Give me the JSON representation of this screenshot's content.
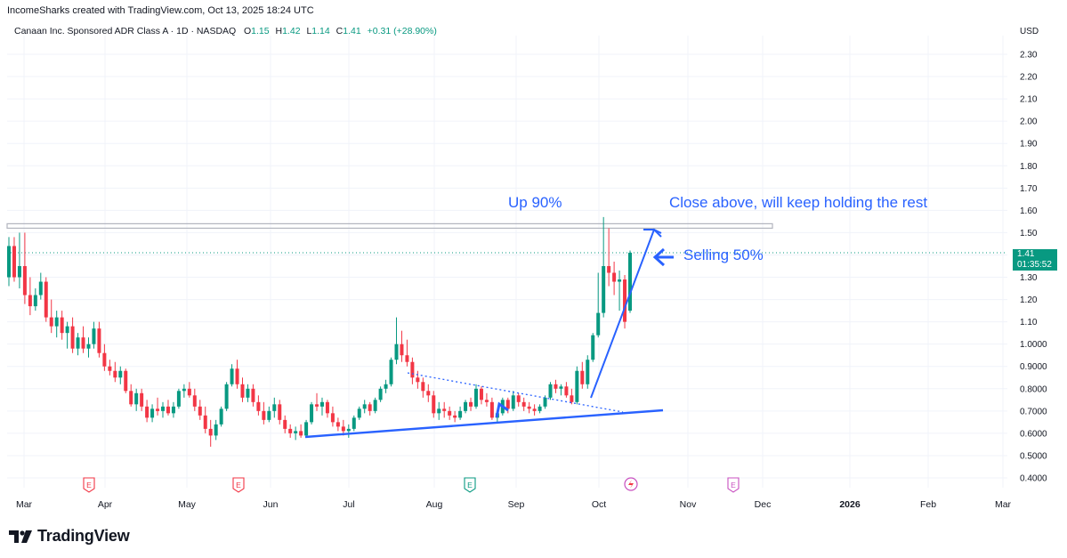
{
  "header": {
    "credit": "IncomeSharks created with TradingView.com, Oct 13, 2025 18:24 UTC"
  },
  "symbol": {
    "name": "Canaan Inc. Sponsored ADR Class A · 1D · NASDAQ",
    "o_label": "O",
    "o": "1.15",
    "h_label": "H",
    "h": "1.42",
    "l_label": "L",
    "l": "1.14",
    "c_label": "C",
    "c": "1.41",
    "change": "+0.31 (+28.90%)"
  },
  "price_tag": {
    "price": "1.41",
    "countdown": "01:35:52"
  },
  "brand": {
    "name": "TradingView"
  },
  "colors": {
    "up": "#089981",
    "down": "#f23645",
    "annotation": "#2962ff",
    "grid": "#f0f3fa"
  },
  "chart_data": {
    "type": "candlestick",
    "currency": "USD",
    "ylim": [
      0.4,
      2.3
    ],
    "y_ticks": [
      "2.30",
      "2.20",
      "2.10",
      "2.00",
      "1.90",
      "1.80",
      "1.70",
      "1.60",
      "1.50",
      "1.40",
      "1.30",
      "1.20",
      "1.10",
      "1.0000",
      "0.9000",
      "0.8000",
      "0.7000",
      "0.6000",
      "0.5000",
      "0.4000"
    ],
    "x_ticks": [
      "Mar",
      "Apr",
      "May",
      "Jun",
      "Jul",
      "Aug",
      "Sep",
      "Oct",
      "Nov",
      "Dec",
      "2026",
      "Feb",
      "Mar"
    ],
    "earnings_markers": [
      "E",
      "E",
      "E",
      "E"
    ],
    "candles": [
      [
        1.3,
        1.48,
        1.26,
        1.44
      ],
      [
        1.44,
        1.48,
        1.28,
        1.3
      ],
      [
        1.3,
        1.5,
        1.25,
        1.35
      ],
      [
        1.35,
        1.5,
        1.18,
        1.22
      ],
      [
        1.22,
        1.3,
        1.13,
        1.17
      ],
      [
        1.17,
        1.25,
        1.15,
        1.22
      ],
      [
        1.22,
        1.32,
        1.2,
        1.28
      ],
      [
        1.28,
        1.3,
        1.1,
        1.12
      ],
      [
        1.12,
        1.2,
        1.05,
        1.08
      ],
      [
        1.08,
        1.15,
        1.03,
        1.12
      ],
      [
        1.12,
        1.15,
        1.02,
        1.05
      ],
      [
        1.05,
        1.1,
        0.98,
        1.08
      ],
      [
        1.08,
        1.12,
        0.96,
        0.98
      ],
      [
        0.98,
        1.05,
        0.95,
        1.03
      ],
      [
        1.03,
        1.08,
        0.96,
        0.98
      ],
      [
        0.98,
        1.03,
        0.94,
        1.0
      ],
      [
        1.0,
        1.1,
        0.98,
        1.07
      ],
      [
        1.07,
        1.1,
        0.94,
        0.96
      ],
      [
        0.96,
        1.0,
        0.88,
        0.9
      ],
      [
        0.9,
        0.93,
        0.86,
        0.88
      ],
      [
        0.88,
        0.92,
        0.83,
        0.85
      ],
      [
        0.85,
        0.9,
        0.82,
        0.88
      ],
      [
        0.88,
        0.89,
        0.78,
        0.79
      ],
      [
        0.79,
        0.82,
        0.72,
        0.73
      ],
      [
        0.73,
        0.8,
        0.7,
        0.78
      ],
      [
        0.78,
        0.8,
        0.7,
        0.72
      ],
      [
        0.72,
        0.75,
        0.65,
        0.67
      ],
      [
        0.67,
        0.73,
        0.65,
        0.71
      ],
      [
        0.71,
        0.76,
        0.68,
        0.7
      ],
      [
        0.7,
        0.74,
        0.67,
        0.72
      ],
      [
        0.72,
        0.75,
        0.68,
        0.69
      ],
      [
        0.69,
        0.74,
        0.67,
        0.72
      ],
      [
        0.72,
        0.8,
        0.71,
        0.79
      ],
      [
        0.79,
        0.82,
        0.76,
        0.8
      ],
      [
        0.8,
        0.83,
        0.76,
        0.77
      ],
      [
        0.77,
        0.8,
        0.7,
        0.72
      ],
      [
        0.72,
        0.75,
        0.66,
        0.68
      ],
      [
        0.68,
        0.72,
        0.6,
        0.62
      ],
      [
        0.62,
        0.66,
        0.54,
        0.59
      ],
      [
        0.59,
        0.66,
        0.57,
        0.64
      ],
      [
        0.64,
        0.72,
        0.63,
        0.71
      ],
      [
        0.71,
        0.83,
        0.7,
        0.82
      ],
      [
        0.82,
        0.91,
        0.81,
        0.89
      ],
      [
        0.89,
        0.93,
        0.8,
        0.82
      ],
      [
        0.82,
        0.85,
        0.74,
        0.76
      ],
      [
        0.76,
        0.82,
        0.74,
        0.8
      ],
      [
        0.8,
        0.82,
        0.72,
        0.74
      ],
      [
        0.74,
        0.77,
        0.68,
        0.7
      ],
      [
        0.7,
        0.74,
        0.64,
        0.66
      ],
      [
        0.66,
        0.72,
        0.65,
        0.7
      ],
      [
        0.7,
        0.76,
        0.67,
        0.73
      ],
      [
        0.73,
        0.75,
        0.64,
        0.66
      ],
      [
        0.66,
        0.68,
        0.6,
        0.62
      ],
      [
        0.62,
        0.64,
        0.58,
        0.6
      ],
      [
        0.6,
        0.63,
        0.57,
        0.61
      ],
      [
        0.61,
        0.64,
        0.58,
        0.59
      ],
      [
        0.59,
        0.66,
        0.58,
        0.65
      ],
      [
        0.65,
        0.74,
        0.64,
        0.73
      ],
      [
        0.73,
        0.78,
        0.7,
        0.72
      ],
      [
        0.72,
        0.76,
        0.68,
        0.74
      ],
      [
        0.74,
        0.75,
        0.67,
        0.69
      ],
      [
        0.69,
        0.72,
        0.63,
        0.65
      ],
      [
        0.65,
        0.67,
        0.61,
        0.63
      ],
      [
        0.63,
        0.66,
        0.59,
        0.61
      ],
      [
        0.61,
        0.64,
        0.58,
        0.62
      ],
      [
        0.62,
        0.68,
        0.61,
        0.67
      ],
      [
        0.67,
        0.72,
        0.66,
        0.71
      ],
      [
        0.71,
        0.75,
        0.69,
        0.73
      ],
      [
        0.73,
        0.74,
        0.68,
        0.7
      ],
      [
        0.7,
        0.76,
        0.69,
        0.75
      ],
      [
        0.75,
        0.81,
        0.74,
        0.8
      ],
      [
        0.8,
        0.84,
        0.78,
        0.82
      ],
      [
        0.82,
        0.94,
        0.81,
        0.93
      ],
      [
        0.93,
        1.12,
        0.91,
        1.0
      ],
      [
        1.0,
        1.06,
        0.92,
        0.95
      ],
      [
        0.95,
        1.02,
        0.9,
        0.92
      ],
      [
        0.92,
        0.94,
        0.82,
        0.85
      ],
      [
        0.85,
        0.88,
        0.8,
        0.83
      ],
      [
        0.83,
        0.85,
        0.76,
        0.79
      ],
      [
        0.79,
        0.82,
        0.74,
        0.77
      ],
      [
        0.77,
        0.79,
        0.67,
        0.69
      ],
      [
        0.69,
        0.74,
        0.66,
        0.71
      ],
      [
        0.71,
        0.74,
        0.67,
        0.7
      ],
      [
        0.7,
        0.72,
        0.66,
        0.68
      ],
      [
        0.68,
        0.7,
        0.65,
        0.67
      ],
      [
        0.67,
        0.72,
        0.66,
        0.7
      ],
      [
        0.7,
        0.75,
        0.69,
        0.74
      ],
      [
        0.74,
        0.76,
        0.7,
        0.72
      ],
      [
        0.72,
        0.82,
        0.71,
        0.8
      ],
      [
        0.8,
        0.81,
        0.73,
        0.75
      ],
      [
        0.75,
        0.78,
        0.72,
        0.74
      ],
      [
        0.74,
        0.76,
        0.66,
        0.67
      ],
      [
        0.67,
        0.7,
        0.65,
        0.69
      ],
      [
        0.69,
        0.76,
        0.68,
        0.75
      ],
      [
        0.75,
        0.76,
        0.69,
        0.71
      ],
      [
        0.71,
        0.79,
        0.7,
        0.77
      ],
      [
        0.77,
        0.78,
        0.72,
        0.74
      ],
      [
        0.74,
        0.76,
        0.7,
        0.72
      ],
      [
        0.72,
        0.74,
        0.69,
        0.71
      ],
      [
        0.71,
        0.73,
        0.68,
        0.7
      ],
      [
        0.7,
        0.73,
        0.69,
        0.72
      ],
      [
        0.72,
        0.77,
        0.71,
        0.76
      ],
      [
        0.76,
        0.83,
        0.75,
        0.82
      ],
      [
        0.82,
        0.84,
        0.78,
        0.8
      ],
      [
        0.8,
        0.82,
        0.77,
        0.81
      ],
      [
        0.81,
        0.83,
        0.76,
        0.77
      ],
      [
        0.77,
        0.8,
        0.73,
        0.74
      ],
      [
        0.74,
        0.9,
        0.73,
        0.88
      ],
      [
        0.88,
        0.92,
        0.8,
        0.82
      ],
      [
        0.82,
        0.95,
        0.8,
        0.93
      ],
      [
        0.93,
        1.05,
        0.92,
        1.04
      ],
      [
        1.04,
        1.32,
        1.03,
        1.14
      ],
      [
        1.14,
        1.57,
        1.12,
        1.35
      ],
      [
        1.35,
        1.52,
        1.26,
        1.32
      ],
      [
        1.32,
        1.37,
        1.22,
        1.28
      ],
      [
        1.28,
        1.33,
        1.15,
        1.29
      ],
      [
        1.29,
        1.31,
        1.07,
        1.1
      ],
      [
        1.15,
        1.42,
        1.14,
        1.41
      ]
    ],
    "resistance_band": [
      1.52,
      1.54
    ],
    "current_price": 1.41,
    "annotations": [
      "Up 90%",
      "Close above, will keep holding the rest",
      "Selling 50%"
    ]
  }
}
